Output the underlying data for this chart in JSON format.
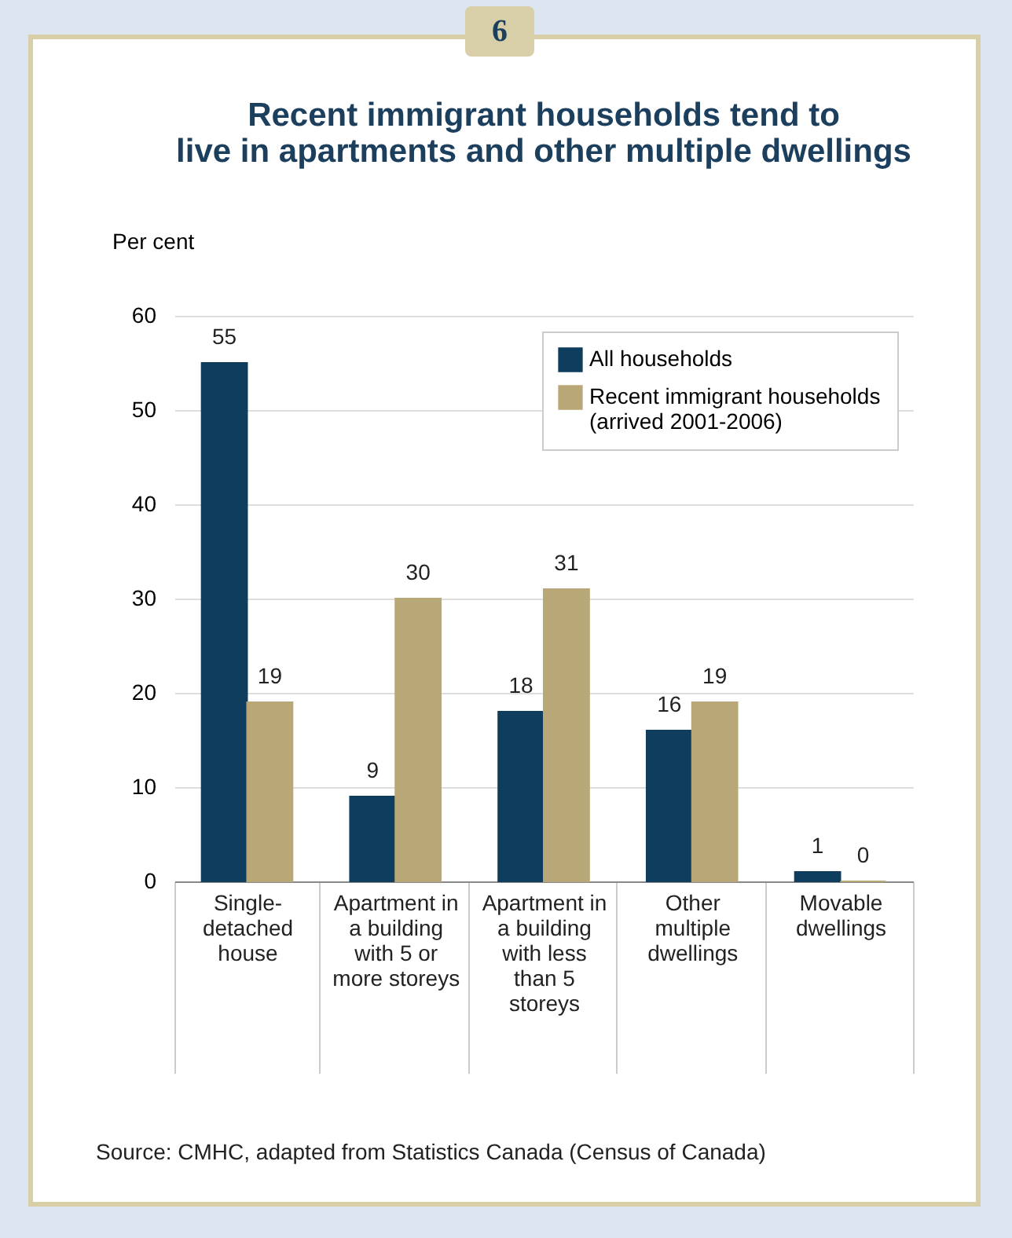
{
  "chart_data": {
    "type": "bar",
    "title": "Recent immigrant households tend to live in apartments and other multiple dwellings",
    "ylabel": "Per cent",
    "categories": [
      "Single-detached house",
      "Apartment in a building with 5 or more storeys",
      "Apartment in a building with less than 5 storeys",
      "Other multiple dwellings",
      "Movable dwellings"
    ],
    "series": [
      {
        "name": "All households",
        "color": "#0f3d5e",
        "values": [
          55,
          9,
          18,
          16,
          1
        ]
      },
      {
        "name": "Recent immigrant households (arrived 2001-2006)",
        "color": "#b9a877",
        "values": [
          19,
          30,
          31,
          19,
          0
        ]
      }
    ],
    "ylim": [
      0,
      60
    ],
    "yticks": [
      0,
      10,
      20,
      30,
      40,
      50,
      60
    ],
    "grid": "y",
    "legend": "top right",
    "data_labels": true,
    "annotations": [
      "6",
      "Source:  CMHC, adapted from Statistics Canada (Census of Canada)"
    ]
  }
}
